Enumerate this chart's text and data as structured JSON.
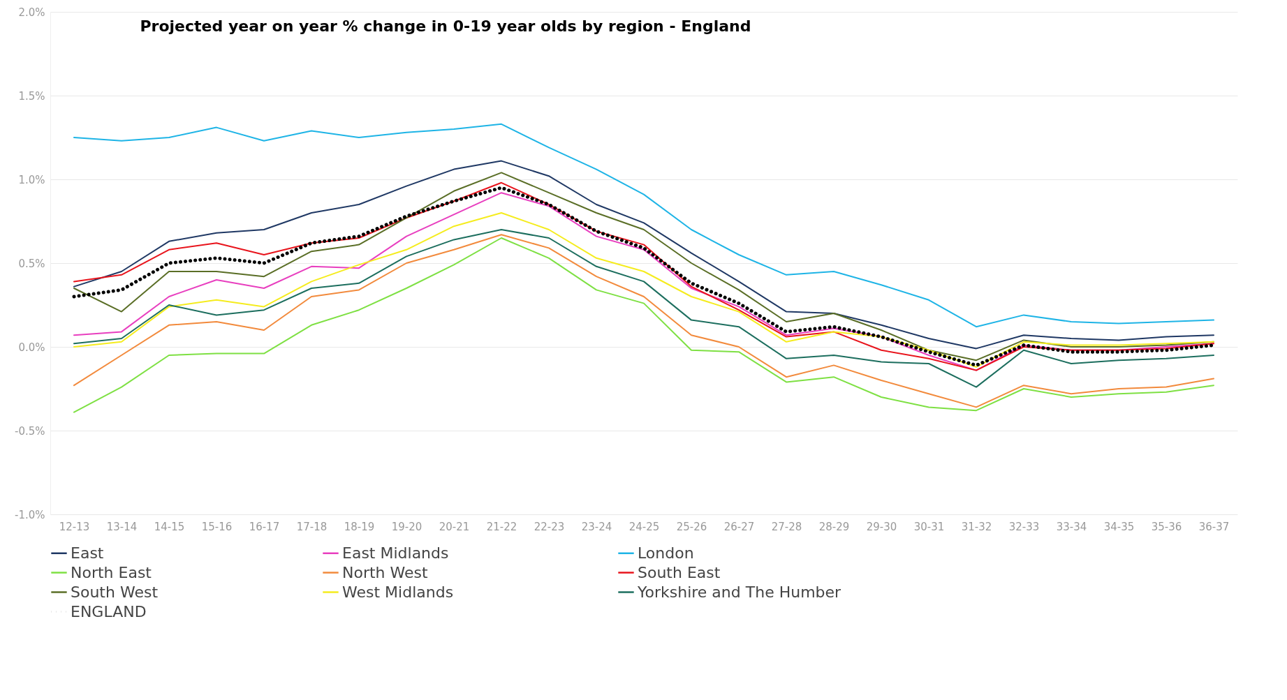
{
  "chart_data": {
    "type": "line",
    "title": "Projected year on year % change in 0-19 year olds by region - England",
    "categories": [
      "12-13",
      "13-14",
      "14-15",
      "15-16",
      "16-17",
      "17-18",
      "18-19",
      "19-20",
      "20-21",
      "21-22",
      "22-23",
      "23-24",
      "24-25",
      "25-26",
      "26-27",
      "27-28",
      "28-29",
      "29-30",
      "30-31",
      "31-32",
      "32-33",
      "33-34",
      "34-35",
      "35-36",
      "36-37"
    ],
    "series": [
      {
        "name": "East",
        "color": "#1f3864",
        "values": [
          0.36,
          0.45,
          0.63,
          0.68,
          0.7,
          0.8,
          0.85,
          0.96,
          1.06,
          1.11,
          1.02,
          0.85,
          0.74,
          0.56,
          0.39,
          0.21,
          0.2,
          0.13,
          0.05,
          -0.01,
          0.07,
          0.05,
          0.04,
          0.06,
          0.07
        ]
      },
      {
        "name": "East Midlands",
        "color": "#e83fbf",
        "values": [
          0.07,
          0.09,
          0.3,
          0.4,
          0.35,
          0.48,
          0.47,
          0.66,
          0.79,
          0.92,
          0.84,
          0.66,
          0.58,
          0.35,
          0.24,
          0.07,
          0.11,
          0.06,
          -0.05,
          -0.14,
          0.01,
          -0.02,
          -0.02,
          0.0,
          0.02
        ]
      },
      {
        "name": "London",
        "color": "#1eb4e6",
        "values": [
          1.25,
          1.23,
          1.25,
          1.31,
          1.23,
          1.29,
          1.25,
          1.28,
          1.3,
          1.33,
          1.19,
          1.06,
          0.91,
          0.7,
          0.55,
          0.43,
          0.45,
          0.37,
          0.28,
          0.12,
          0.19,
          0.15,
          0.14,
          0.15,
          0.16
        ]
      },
      {
        "name": "North East",
        "color": "#7ee043",
        "values": [
          -0.39,
          -0.24,
          -0.05,
          -0.04,
          -0.04,
          0.13,
          0.22,
          0.35,
          0.49,
          0.65,
          0.53,
          0.34,
          0.26,
          -0.02,
          -0.03,
          -0.21,
          -0.18,
          -0.3,
          -0.36,
          -0.38,
          -0.25,
          -0.3,
          -0.28,
          -0.27,
          -0.23
        ]
      },
      {
        "name": "North West",
        "color": "#f28a3c",
        "values": [
          -0.23,
          -0.05,
          0.13,
          0.15,
          0.1,
          0.3,
          0.34,
          0.5,
          0.58,
          0.67,
          0.59,
          0.42,
          0.3,
          0.07,
          0.0,
          -0.18,
          -0.11,
          -0.2,
          -0.28,
          -0.36,
          -0.23,
          -0.28,
          -0.25,
          -0.24,
          -0.19
        ]
      },
      {
        "name": "South East",
        "color": "#e8141c",
        "values": [
          0.39,
          0.43,
          0.58,
          0.62,
          0.55,
          0.62,
          0.65,
          0.77,
          0.87,
          0.98,
          0.85,
          0.69,
          0.61,
          0.36,
          0.22,
          0.06,
          0.09,
          -0.02,
          -0.07,
          -0.14,
          0.0,
          -0.02,
          -0.02,
          -0.01,
          0.02
        ]
      },
      {
        "name": "South West",
        "color": "#5a6e26",
        "values": [
          0.35,
          0.21,
          0.45,
          0.45,
          0.42,
          0.57,
          0.61,
          0.77,
          0.93,
          1.04,
          0.92,
          0.8,
          0.7,
          0.5,
          0.34,
          0.15,
          0.2,
          0.1,
          -0.02,
          -0.08,
          0.04,
          0.0,
          0.0,
          0.01,
          0.03
        ]
      },
      {
        "name": "West Midlands",
        "color": "#f5ec1e",
        "values": [
          0.0,
          0.03,
          0.24,
          0.28,
          0.24,
          0.39,
          0.49,
          0.58,
          0.72,
          0.8,
          0.7,
          0.53,
          0.45,
          0.3,
          0.21,
          0.03,
          0.09,
          0.06,
          -0.02,
          -0.12,
          0.03,
          0.01,
          0.01,
          0.02,
          0.03
        ]
      },
      {
        "name": "Yorkshire and The Humber",
        "color": "#1c6e5e",
        "values": [
          0.02,
          0.05,
          0.25,
          0.19,
          0.22,
          0.35,
          0.38,
          0.54,
          0.64,
          0.7,
          0.65,
          0.48,
          0.39,
          0.16,
          0.12,
          -0.07,
          -0.05,
          -0.09,
          -0.1,
          -0.24,
          -0.02,
          -0.1,
          -0.08,
          -0.07,
          -0.05
        ]
      },
      {
        "name": "ENGLAND",
        "color": "#000000",
        "line_style": "dotted",
        "values": [
          0.3,
          0.34,
          0.5,
          0.53,
          0.5,
          0.62,
          0.66,
          0.78,
          0.87,
          0.95,
          0.85,
          0.69,
          0.59,
          0.38,
          0.26,
          0.09,
          0.12,
          0.06,
          -0.03,
          -0.11,
          0.01,
          -0.03,
          -0.03,
          -0.02,
          0.01
        ]
      }
    ],
    "ylim": [
      -1.0,
      2.0
    ],
    "yticks": [
      {
        "value": -1.0,
        "label": "-1.0%"
      },
      {
        "value": -0.5,
        "label": "-0.5%"
      },
      {
        "value": 0.0,
        "label": "0.0%"
      },
      {
        "value": 0.5,
        "label": "0.5%"
      },
      {
        "value": 1.0,
        "label": "1.0%"
      },
      {
        "value": 1.5,
        "label": "1.5%"
      },
      {
        "value": 2.0,
        "label": "2.0%"
      }
    ],
    "grid": "y",
    "legend": "bottom",
    "line_style": "solid",
    "marker": "none"
  }
}
